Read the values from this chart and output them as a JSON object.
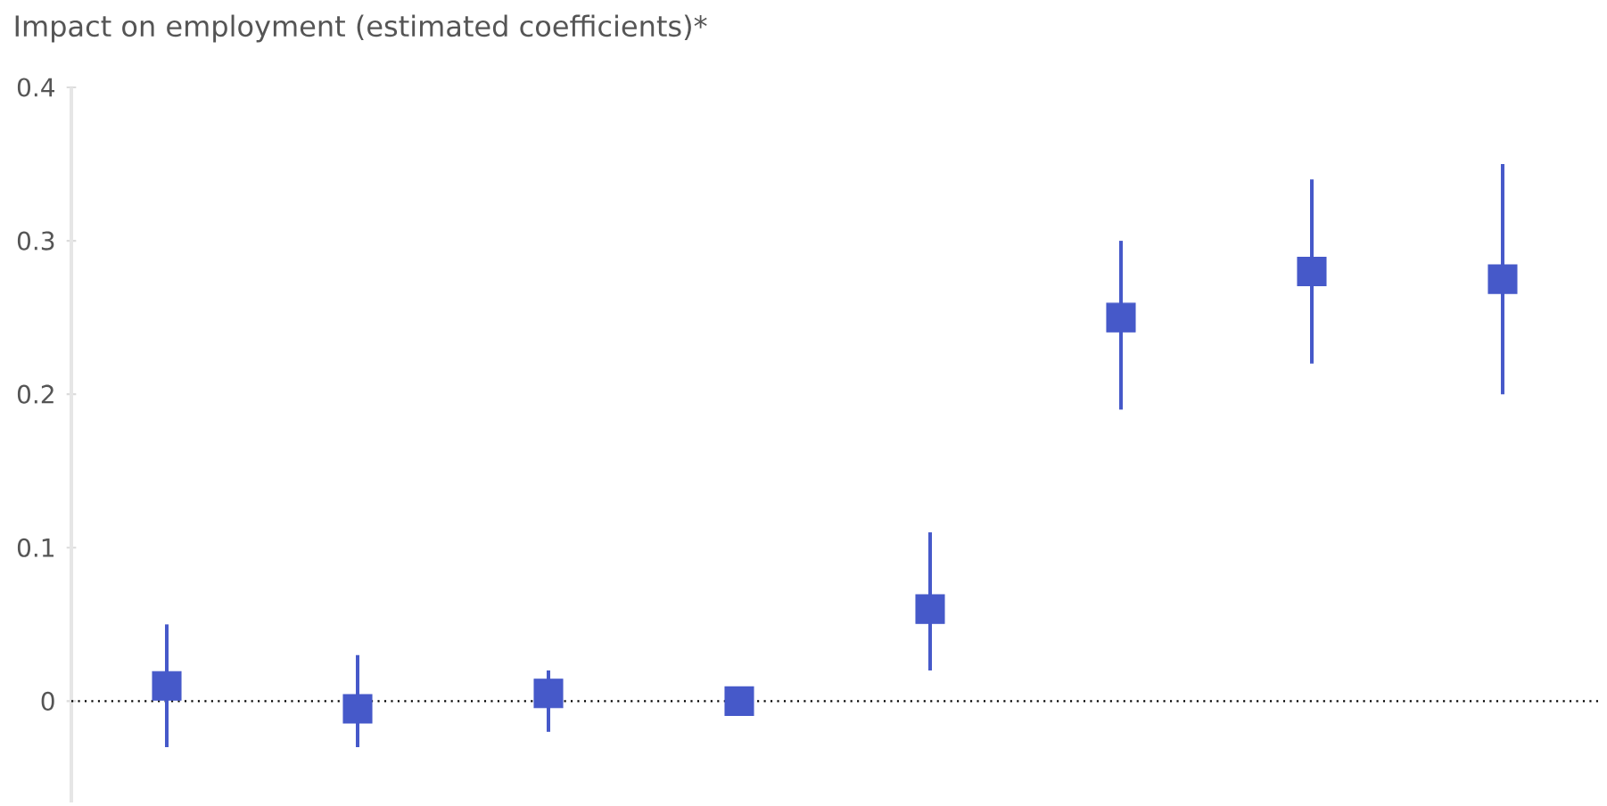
{
  "chart_data": {
    "type": "scatter",
    "title": "Impact on employment (estimated coefficients)*",
    "categories": [
      null,
      null,
      null,
      null,
      null,
      null,
      null,
      null
    ],
    "values": [
      0.01,
      -0.005,
      0.005,
      0,
      0.06,
      0.25,
      0.28,
      0.275
    ],
    "errors": [
      [
        -0.03,
        0.05
      ],
      [
        -0.03,
        0.03
      ],
      [
        -0.02,
        0.02
      ],
      null,
      [
        0.02,
        0.11
      ],
      [
        0.19,
        0.3
      ],
      [
        0.22,
        0.34
      ],
      [
        0.2,
        0.35
      ]
    ],
    "color": "#4659c9",
    "marker": "square",
    "ylim": [
      -0.066,
      0.4
    ],
    "yticks": [
      0,
      0.1,
      0.2,
      0.3,
      0.4
    ],
    "ref_lines": [
      {
        "axis": "y",
        "value": 0,
        "color": "#000000",
        "line_style": "dotted"
      }
    ]
  }
}
